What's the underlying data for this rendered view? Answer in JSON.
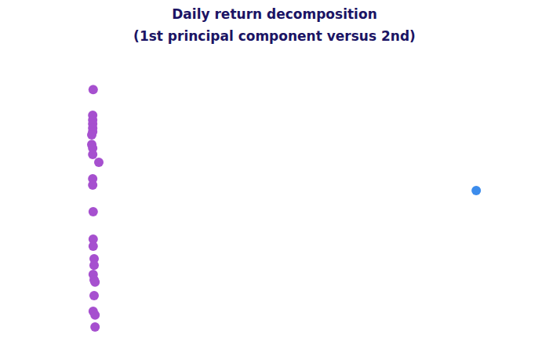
{
  "chart_data": {
    "type": "scatter",
    "title": "Daily return decomposition",
    "subtitle": "(1st principal component versus 2nd)",
    "xlim": [
      0,
      100
    ],
    "ylim": [
      0,
      100
    ],
    "tick_labels": false,
    "grid": false,
    "series": [
      {
        "color": "#a650cf",
        "marker": "circle",
        "x": [
          9.8,
          9.7,
          9.7,
          9.7,
          9.7,
          9.7,
          9.5,
          9.5,
          9.7,
          9.7,
          11.0,
          9.7,
          9.7,
          9.8,
          9.8,
          9.8,
          10.0,
          10.0,
          9.8,
          10.0,
          10.2,
          10.0,
          9.8,
          10.2,
          10.2
        ],
        "values": [
          93.1,
          83.7,
          82.0,
          80.6,
          79.1,
          77.7,
          76.6,
          73.1,
          71.7,
          69.4,
          66.6,
          60.6,
          58.3,
          48.6,
          38.6,
          36.0,
          31.4,
          29.1,
          25.7,
          23.7,
          22.9,
          18.0,
          12.3,
          10.9,
          6.6
        ]
      },
      {
        "color": "#3c8cec",
        "marker": "circle",
        "x": [
          91.2
        ],
        "values": [
          56.3
        ]
      }
    ]
  }
}
